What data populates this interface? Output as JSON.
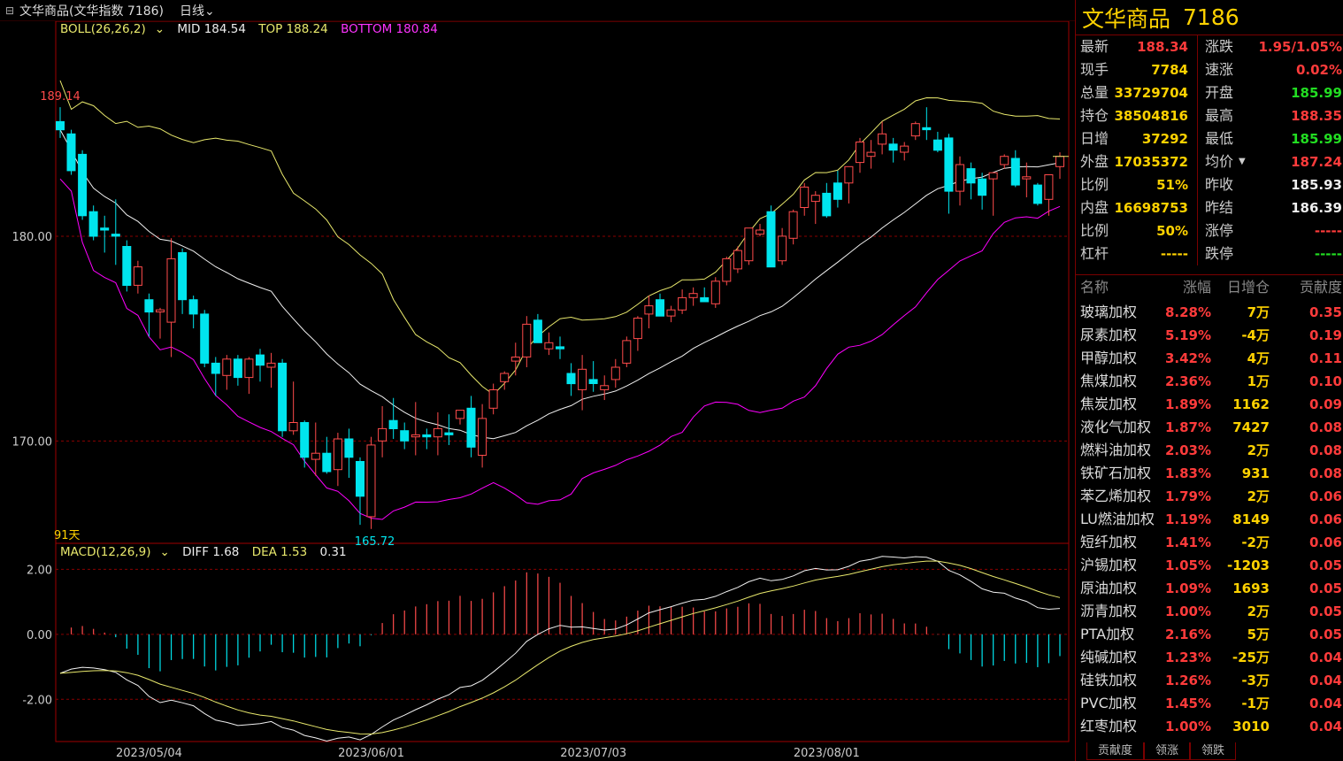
{
  "topbar": {
    "title": "文华商品(文华指数  7186)",
    "period": "日线"
  },
  "boll_legend": {
    "name": "BOLL(26,26,2)",
    "mid": "MID 184.54",
    "top": "TOP 188.24",
    "bottom": "BOTTOM 180.84"
  },
  "macd_legend": {
    "name": "MACD(12,26,9)",
    "diff": "DIFF 1.68",
    "dea": "DEA 1.53",
    "macd": "0.31"
  },
  "chart_labels": {
    "price_axis": [
      "180.00",
      "170.00"
    ],
    "macd_axis": [
      "2.00",
      "0.00",
      "-2.00"
    ],
    "dates": [
      "2023/05/04",
      "2023/06/01",
      "2023/07/03",
      "2023/08/01"
    ],
    "high_mark": "189.14",
    "low_mark": "165.72",
    "days": "91天"
  },
  "colors": {
    "up": "#ff4b4b",
    "down": "#00e5ee",
    "boll_top": "#e8e86c",
    "boll_mid": "#f0f0f0",
    "boll_bottom": "#ff00ff",
    "dea": "#e8e86c"
  },
  "chart_data": {
    "type": "candlestick",
    "count": 91,
    "ohlc": [
      [
        185.6,
        186.3,
        184.8,
        185.2
      ],
      [
        185.0,
        185.2,
        183.0,
        183.2
      ],
      [
        184.0,
        184.2,
        180.8,
        181.0
      ],
      [
        181.2,
        181.5,
        179.8,
        180.0
      ],
      [
        180.4,
        181.0,
        179.2,
        180.3
      ],
      [
        180.1,
        181.8,
        178.6,
        180.0
      ],
      [
        179.5,
        179.8,
        177.3,
        177.6
      ],
      [
        177.6,
        178.8,
        177.2,
        178.5
      ],
      [
        176.9,
        177.2,
        175.1,
        176.3
      ],
      [
        176.3,
        176.5,
        175.0,
        176.4
      ],
      [
        175.8,
        179.9,
        174.1,
        178.9
      ],
      [
        179.2,
        179.4,
        176.2,
        176.9
      ],
      [
        176.9,
        177.1,
        175.5,
        176.2
      ],
      [
        176.2,
        176.4,
        173.6,
        173.8
      ],
      [
        173.8,
        174.1,
        172.2,
        173.3
      ],
      [
        173.2,
        174.2,
        172.5,
        174.0
      ],
      [
        174.0,
        174.2,
        172.7,
        173.1
      ],
      [
        173.1,
        174.1,
        172.3,
        174.0
      ],
      [
        174.2,
        174.5,
        172.9,
        173.7
      ],
      [
        173.6,
        174.3,
        172.6,
        173.8
      ],
      [
        173.8,
        174.0,
        170.2,
        170.5
      ],
      [
        170.5,
        172.9,
        170.3,
        170.9
      ],
      [
        170.9,
        171.0,
        168.7,
        169.2
      ],
      [
        169.1,
        170.9,
        168.3,
        169.4
      ],
      [
        169.4,
        170.2,
        168.4,
        168.5
      ],
      [
        168.6,
        170.4,
        167.8,
        170.1
      ],
      [
        170.1,
        170.6,
        168.2,
        169.2
      ],
      [
        169.0,
        169.2,
        165.9,
        167.3
      ],
      [
        166.3,
        170.2,
        165.7,
        169.8
      ],
      [
        170.0,
        171.7,
        169.2,
        170.6
      ],
      [
        171.0,
        172.1,
        170.1,
        170.6
      ],
      [
        170.5,
        170.9,
        169.6,
        170.0
      ],
      [
        170.2,
        171.9,
        169.3,
        170.3
      ],
      [
        170.3,
        170.6,
        169.6,
        170.2
      ],
      [
        170.2,
        171.4,
        169.3,
        170.6
      ],
      [
        170.4,
        171.3,
        169.8,
        170.3
      ],
      [
        171.1,
        171.4,
        170.8,
        171.5
      ],
      [
        171.6,
        172.2,
        169.2,
        169.7
      ],
      [
        169.3,
        171.8,
        168.7,
        171.1
      ],
      [
        171.6,
        172.8,
        171.3,
        172.5
      ],
      [
        172.9,
        173.4,
        172.5,
        173.3
      ],
      [
        173.9,
        174.8,
        173.2,
        174.1
      ],
      [
        174.1,
        176.1,
        173.6,
        175.7
      ],
      [
        175.9,
        176.2,
        174.8,
        174.8
      ],
      [
        174.5,
        175.3,
        174.2,
        174.8
      ],
      [
        174.6,
        175.1,
        174.0,
        174.5
      ],
      [
        173.3,
        173.8,
        172.2,
        172.8
      ],
      [
        172.5,
        174.2,
        171.5,
        173.5
      ],
      [
        173.0,
        173.9,
        172.4,
        172.8
      ],
      [
        172.5,
        173.2,
        172.0,
        172.7
      ],
      [
        173.0,
        174.0,
        172.6,
        173.6
      ],
      [
        173.8,
        175.1,
        173.6,
        174.9
      ],
      [
        175.0,
        176.1,
        174.4,
        176.0
      ],
      [
        176.2,
        177.1,
        175.5,
        176.6
      ],
      [
        176.9,
        177.2,
        176.1,
        176.1
      ],
      [
        176.1,
        176.6,
        175.8,
        176.4
      ],
      [
        176.4,
        177.4,
        176.2,
        177.0
      ],
      [
        177.0,
        177.5,
        176.6,
        177.2
      ],
      [
        177.0,
        177.5,
        176.8,
        176.8
      ],
      [
        176.7,
        178.0,
        176.5,
        177.8
      ],
      [
        177.8,
        179.0,
        177.6,
        178.9
      ],
      [
        178.4,
        179.5,
        178.2,
        179.3
      ],
      [
        178.8,
        180.2,
        178.6,
        180.4
      ],
      [
        180.1,
        180.6,
        180.0,
        180.3
      ],
      [
        181.2,
        181.5,
        178.7,
        178.5
      ],
      [
        178.8,
        180.4,
        178.6,
        180.0
      ],
      [
        179.9,
        181.3,
        179.6,
        181.2
      ],
      [
        181.4,
        182.6,
        181.0,
        182.4
      ],
      [
        181.7,
        182.2,
        180.6,
        182.0
      ],
      [
        182.1,
        182.6,
        180.9,
        181.0
      ],
      [
        182.6,
        183.2,
        181.4,
        181.8
      ],
      [
        182.6,
        183.4,
        181.6,
        183.4
      ],
      [
        183.6,
        184.8,
        183.1,
        184.6
      ],
      [
        183.9,
        184.7,
        183.3,
        184.1
      ],
      [
        184.5,
        185.6,
        184.0,
        185.0
      ],
      [
        184.5,
        184.8,
        183.6,
        184.2
      ],
      [
        184.1,
        184.6,
        183.7,
        184.4
      ],
      [
        184.9,
        185.6,
        184.7,
        185.5
      ],
      [
        185.3,
        186.3,
        184.7,
        185.2
      ],
      [
        184.7,
        185.1,
        184.1,
        184.2
      ],
      [
        184.8,
        185.0,
        181.1,
        182.2
      ],
      [
        182.2,
        183.9,
        181.5,
        183.5
      ],
      [
        183.3,
        183.6,
        181.8,
        182.6
      ],
      [
        182.8,
        183.1,
        181.3,
        182.0
      ],
      [
        182.8,
        183.0,
        181.0,
        183.1
      ],
      [
        183.5,
        184.0,
        183.3,
        183.9
      ],
      [
        183.8,
        184.2,
        182.4,
        182.5
      ],
      [
        182.8,
        183.6,
        181.9,
        182.9
      ],
      [
        182.5,
        182.6,
        181.5,
        181.6
      ],
      [
        181.8,
        183.0,
        181.0,
        183.0
      ],
      [
        183.4,
        184.1,
        182.8,
        183.9
      ]
    ],
    "macd_diff_start": -1.2,
    "price_range": [
      165.0,
      190.5
    ],
    "macd_range": [
      -3.3,
      2.8
    ]
  },
  "right_panel": {
    "title_name": "文华商品",
    "title_code": "7186",
    "quote_left": [
      {
        "label": "最新",
        "value": "188.34",
        "color": "#ff3b3b"
      },
      {
        "label": "现手",
        "value": "7784",
        "color": "#ffd200"
      },
      {
        "label": "总量",
        "value": "33729704",
        "color": "#ffd200"
      },
      {
        "label": "持仓",
        "value": "38504816",
        "color": "#ffd200"
      },
      {
        "label": "日增",
        "value": "37292",
        "color": "#ffd200"
      },
      {
        "label": "外盘",
        "value": "17035372",
        "color": "#ffd200"
      },
      {
        "label": "比例",
        "value": "51%",
        "color": "#ffd200"
      },
      {
        "label": "内盘",
        "value": "16698753",
        "color": "#ffd200"
      },
      {
        "label": "比例",
        "value": "50%",
        "color": "#ffd200"
      },
      {
        "label": "杠杆",
        "value": "-----",
        "color": "#ffd200"
      }
    ],
    "quote_right": [
      {
        "label": "涨跌",
        "value": "1.95/1.05%",
        "color": "#ff3b3b"
      },
      {
        "label": "速涨",
        "value": "0.02%",
        "color": "#ff3b3b"
      },
      {
        "label": "开盘",
        "value": "185.99",
        "color": "#22dd22"
      },
      {
        "label": "最高",
        "value": "188.35",
        "color": "#ff3b3b"
      },
      {
        "label": "最低",
        "value": "185.99",
        "color": "#22dd22"
      },
      {
        "label": "均价",
        "value": "187.24",
        "color": "#ff3b3b"
      },
      {
        "label": "昨收",
        "value": "185.93",
        "color": "#eeeeee"
      },
      {
        "label": "昨结",
        "value": "186.39",
        "color": "#eeeeee"
      },
      {
        "label": "涨停",
        "value": "-----",
        "color": "#ff3b3b"
      },
      {
        "label": "跌停",
        "value": "-----",
        "color": "#22dd22"
      }
    ],
    "table_headers": [
      "名称",
      "涨幅",
      "日增仓",
      "贡献度"
    ],
    "rows": [
      {
        "name": "玻璃加权",
        "pct": "8.28%",
        "pos": "7万",
        "con": "0.35"
      },
      {
        "name": "尿素加权",
        "pct": "5.19%",
        "pos": "-4万",
        "con": "0.19"
      },
      {
        "name": "甲醇加权",
        "pct": "3.42%",
        "pos": "4万",
        "con": "0.11"
      },
      {
        "name": "焦煤加权",
        "pct": "2.36%",
        "pos": "1万",
        "con": "0.10"
      },
      {
        "name": "焦炭加权",
        "pct": "1.89%",
        "pos": "1162",
        "con": "0.09"
      },
      {
        "name": "液化气加权",
        "pct": "1.87%",
        "pos": "7427",
        "con": "0.08"
      },
      {
        "name": "燃料油加权",
        "pct": "2.03%",
        "pos": "2万",
        "con": "0.08"
      },
      {
        "name": "铁矿石加权",
        "pct": "1.83%",
        "pos": "931",
        "con": "0.08"
      },
      {
        "name": "苯乙烯加权",
        "pct": "1.79%",
        "pos": "2万",
        "con": "0.06"
      },
      {
        "name": "LU燃油加权",
        "pct": "1.19%",
        "pos": "8149",
        "con": "0.06"
      },
      {
        "name": "短纤加权",
        "pct": "1.41%",
        "pos": "-2万",
        "con": "0.06"
      },
      {
        "name": "沪锡加权",
        "pct": "1.05%",
        "pos": "-1203",
        "con": "0.05"
      },
      {
        "name": "原油加权",
        "pct": "1.09%",
        "pos": "1693",
        "con": "0.05"
      },
      {
        "name": "沥青加权",
        "pct": "1.00%",
        "pos": "2万",
        "con": "0.05"
      },
      {
        "name": "PTA加权",
        "pct": "2.16%",
        "pos": "5万",
        "con": "0.05"
      },
      {
        "name": "纯碱加权",
        "pct": "1.23%",
        "pos": "-25万",
        "con": "0.04"
      },
      {
        "name": "硅铁加权",
        "pct": "1.26%",
        "pos": "-3万",
        "con": "0.04"
      },
      {
        "name": "PVC加权",
        "pct": "1.45%",
        "pos": "-1万",
        "con": "0.04"
      },
      {
        "name": "红枣加权",
        "pct": "1.00%",
        "pos": "3010",
        "con": "0.04"
      }
    ],
    "tabs": [
      "贡献度",
      "领涨",
      "领跌"
    ]
  }
}
